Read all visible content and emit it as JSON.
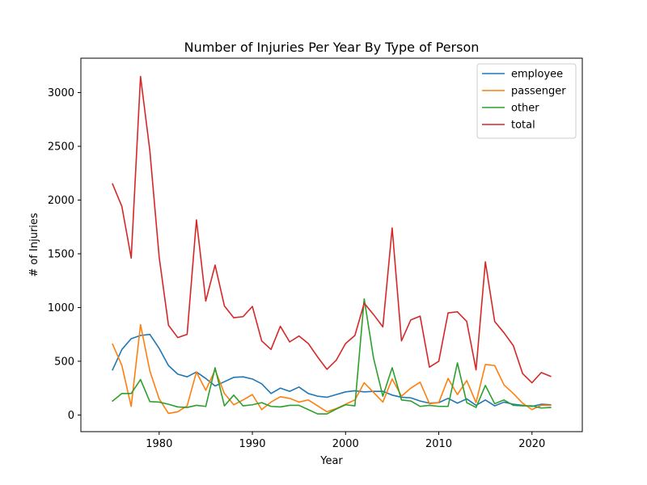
{
  "chart_data": {
    "type": "line",
    "title": "Number of Injuries Per Year By Type of Person",
    "xlabel": "Year",
    "ylabel": "# of Injuries",
    "xlim": [
      1971.6,
      2025.4
    ],
    "ylim": [
      -155,
      3320
    ],
    "xticks": [
      1980,
      1990,
      2000,
      2010,
      2020
    ],
    "yticks": [
      0,
      500,
      1000,
      1500,
      2000,
      2500,
      3000
    ],
    "grid": false,
    "legend_position": "top-right",
    "x": [
      1975,
      1976,
      1977,
      1978,
      1979,
      1980,
      1981,
      1982,
      1983,
      1984,
      1985,
      1986,
      1987,
      1988,
      1989,
      1990,
      1991,
      1992,
      1993,
      1994,
      1995,
      1996,
      1997,
      1998,
      1999,
      2000,
      2001,
      2002,
      2003,
      2004,
      2005,
      2006,
      2007,
      2008,
      2009,
      2010,
      2011,
      2012,
      2013,
      2014,
      2015,
      2016,
      2017,
      2018,
      2019,
      2020,
      2021,
      2022
    ],
    "series": [
      {
        "name": "employee",
        "color": "#1f77b4",
        "values": [
          420,
          610,
          710,
          740,
          750,
          620,
          460,
          380,
          355,
          400,
          340,
          270,
          310,
          350,
          355,
          335,
          290,
          200,
          250,
          220,
          260,
          200,
          175,
          165,
          190,
          215,
          225,
          215,
          220,
          220,
          185,
          165,
          160,
          130,
          110,
          115,
          155,
          110,
          150,
          90,
          140,
          85,
          120,
          100,
          90,
          80,
          100,
          95
        ]
      },
      {
        "name": "passenger",
        "color": "#ff7f0e",
        "values": [
          660,
          460,
          80,
          840,
          410,
          150,
          15,
          30,
          85,
          400,
          230,
          420,
          200,
          95,
          140,
          190,
          50,
          120,
          170,
          155,
          120,
          140,
          85,
          30,
          60,
          100,
          140,
          300,
          210,
          120,
          335,
          175,
          250,
          305,
          105,
          115,
          340,
          190,
          320,
          115,
          470,
          460,
          280,
          200,
          110,
          50,
          90,
          90
        ]
      },
      {
        "name": "other",
        "color": "#2ca02c",
        "values": [
          130,
          200,
          200,
          330,
          125,
          120,
          100,
          75,
          70,
          90,
          80,
          440,
          85,
          185,
          85,
          95,
          115,
          80,
          75,
          90,
          90,
          50,
          10,
          10,
          55,
          95,
          85,
          1080,
          530,
          175,
          440,
          140,
          130,
          80,
          90,
          80,
          80,
          485,
          115,
          70,
          275,
          105,
          140,
          90,
          85,
          85,
          65,
          70
        ]
      },
      {
        "name": "total",
        "color": "#d62728",
        "values": [
          2150,
          1940,
          1460,
          3150,
          2460,
          1470,
          835,
          720,
          750,
          1815,
          1060,
          1395,
          1015,
          905,
          915,
          1010,
          690,
          610,
          825,
          680,
          735,
          665,
          540,
          425,
          510,
          665,
          740,
          1040,
          935,
          820,
          1740,
          690,
          885,
          920,
          445,
          500,
          950,
          960,
          870,
          420,
          1425,
          870,
          765,
          645,
          385,
          300,
          395,
          360
        ]
      }
    ]
  }
}
